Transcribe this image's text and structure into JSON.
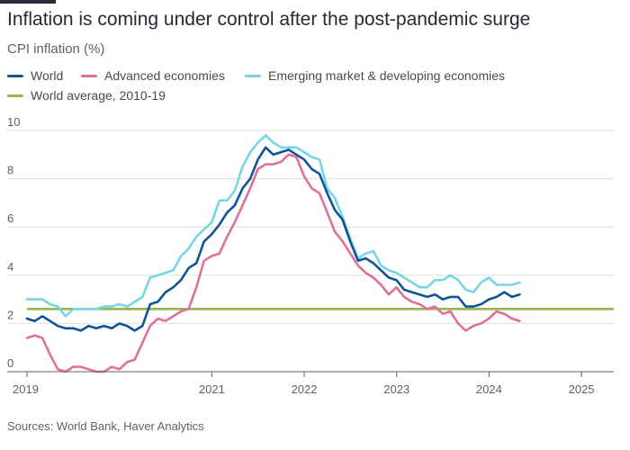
{
  "header": {
    "title": "Inflation is coming under control after the post-pandemic surge",
    "subtitle": "CPI inflation (%)"
  },
  "source": "Sources: World Bank, Haver Analytics",
  "colors": {
    "world": "#0f5499",
    "advanced": "#e0709a",
    "emerging": "#75d6e4",
    "average": "#96b84b",
    "grid": "#e3ddd6",
    "axis": "#66605c"
  },
  "chart_data": {
    "type": "line",
    "title": "Inflation is coming under control after the post-pandemic surge",
    "ylabel": "CPI inflation (%)",
    "xlabel": "",
    "ylim": [
      0,
      10
    ],
    "xlim": [
      2019.0,
      2025.35
    ],
    "yticks": [
      0,
      2,
      4,
      6,
      8,
      10
    ],
    "xticks": [
      {
        "label": "2019",
        "value": 2019
      },
      {
        "label": "2021",
        "value": 2021
      },
      {
        "label": "2022",
        "value": 2022
      },
      {
        "label": "2023",
        "value": 2023
      },
      {
        "label": "2024",
        "value": 2024
      },
      {
        "label": "2025",
        "value": 2025
      }
    ],
    "grid": true,
    "legend": "top-left",
    "x_start": 2019.0,
    "x_step": 0.0833,
    "series": [
      {
        "name": "World",
        "key": "world",
        "values": [
          2.2,
          2.1,
          2.3,
          2.1,
          1.9,
          1.8,
          1.8,
          1.7,
          1.9,
          1.8,
          1.9,
          1.8,
          2.0,
          1.9,
          1.7,
          1.9,
          2.8,
          2.9,
          3.3,
          3.5,
          3.8,
          4.3,
          4.5,
          5.4,
          5.7,
          6.1,
          6.6,
          6.9,
          7.6,
          8.0,
          8.8,
          9.3,
          9.0,
          9.1,
          9.2,
          9.0,
          8.8,
          8.4,
          8.2,
          7.4,
          6.7,
          6.3,
          5.4,
          4.6,
          4.7,
          4.5,
          4.2,
          3.9,
          3.8,
          3.4,
          3.3,
          3.2,
          3.1,
          3.2,
          3.0,
          3.1,
          3.1,
          2.7,
          2.7,
          2.8,
          3.0,
          3.1,
          3.3,
          3.1,
          3.2
        ]
      },
      {
        "name": "Advanced economies",
        "key": "advanced",
        "values": [
          1.4,
          1.5,
          1.4,
          0.7,
          0.1,
          0.0,
          0.2,
          0.2,
          0.1,
          0.0,
          0.0,
          0.2,
          0.1,
          0.4,
          0.5,
          1.2,
          1.9,
          2.2,
          2.1,
          2.3,
          2.5,
          2.6,
          3.5,
          4.6,
          4.8,
          4.9,
          5.6,
          6.2,
          6.9,
          7.6,
          8.4,
          8.6,
          8.6,
          8.7,
          9.0,
          8.9,
          8.1,
          7.6,
          7.4,
          6.6,
          5.8,
          5.4,
          4.9,
          4.4,
          4.1,
          3.9,
          3.6,
          3.2,
          3.5,
          3.1,
          2.9,
          2.8,
          2.6,
          2.7,
          2.4,
          2.5,
          2.0,
          1.7,
          1.9,
          2.0,
          2.2,
          2.5,
          2.4,
          2.2,
          2.1
        ]
      },
      {
        "name": "Emerging market & developing economies",
        "key": "emerging",
        "values": [
          3.0,
          3.0,
          3.0,
          2.8,
          2.7,
          2.3,
          2.6,
          2.6,
          2.6,
          2.6,
          2.7,
          2.7,
          2.8,
          2.7,
          2.9,
          3.1,
          3.9,
          4.0,
          4.1,
          4.2,
          4.8,
          5.1,
          5.6,
          5.9,
          6.2,
          7.1,
          7.1,
          7.5,
          8.5,
          9.1,
          9.5,
          9.8,
          9.5,
          9.3,
          9.3,
          9.3,
          9.1,
          8.9,
          8.8,
          7.6,
          7.2,
          6.4,
          5.5,
          4.7,
          4.9,
          5.0,
          4.4,
          4.2,
          4.1,
          3.9,
          3.7,
          3.5,
          3.5,
          3.8,
          3.8,
          4.0,
          3.8,
          3.4,
          3.3,
          3.7,
          3.9,
          3.6,
          3.6,
          3.6,
          3.7
        ]
      }
    ],
    "reference_lines": [
      {
        "name": "World average, 2010-19",
        "key": "average",
        "value": 2.6
      }
    ]
  }
}
